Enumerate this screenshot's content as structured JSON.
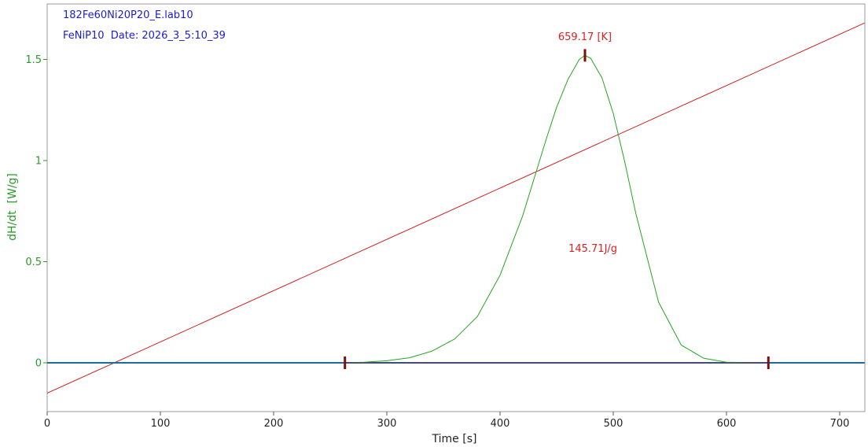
{
  "window": {
    "file_line": "182Fe60Ni20P20_E.lab10",
    "sample_line": "FeNiP10  Date: 2026_3_5:10_39"
  },
  "colors": {
    "dsc_curve": "#22a622",
    "temperature_line": "#cc1f1f",
    "baseline": "#1a6f9a",
    "marker": "#7a0f0f",
    "info_text": "#1c1cd6",
    "y_axis_text": "#2a9a2a",
    "annotation_text": "#dd2020"
  },
  "chart_data": {
    "type": "line",
    "title": "",
    "xlabel": "Time [s]",
    "ylabel": "dH/dt  [W/g]",
    "xlim": [
      0,
      722
    ],
    "ylim": [
      -0.24,
      1.7
    ],
    "xticks": [
      0,
      100,
      200,
      300,
      400,
      500,
      600,
      700
    ],
    "yticks": [
      0,
      0.5,
      1,
      1.5
    ],
    "xtick_labels": [
      "0",
      "100",
      "200",
      "300",
      "400",
      "500",
      "600",
      "700"
    ],
    "ytick_labels": [
      "0",
      "0.5",
      "1",
      "1.5"
    ],
    "grid": false,
    "series": [
      {
        "key": "dsc",
        "x": [
          263,
          280,
          300,
          320,
          340,
          360,
          380,
          400,
          420,
          440,
          450,
          460,
          470,
          475,
          480,
          490,
          500,
          510,
          520,
          540,
          560,
          580,
          600,
          620,
          637
        ],
        "y": [
          0,
          0.003,
          0.01,
          0.025,
          0.058,
          0.118,
          0.229,
          0.433,
          0.727,
          1.092,
          1.264,
          1.401,
          1.5,
          1.52,
          1.506,
          1.409,
          1.233,
          0.997,
          0.737,
          0.3,
          0.088,
          0.022,
          0.003,
          0.001,
          0
        ]
      },
      {
        "key": "temperature",
        "x": [
          0,
          722
        ],
        "y": [
          -0.15,
          1.68
        ]
      },
      {
        "key": "baseline",
        "x": [
          0,
          722
        ],
        "y": [
          0,
          0
        ]
      }
    ],
    "markers": [
      {
        "x": 263,
        "y": 0
      },
      {
        "x": 475,
        "y": 1.52
      },
      {
        "x": 637,
        "y": 0
      }
    ],
    "annotations": [
      {
        "key": "peak-temperature",
        "text": "659.17 [K]",
        "x": 475,
        "y": 1.61
      },
      {
        "key": "enthalpy",
        "text": "145.71J/g",
        "x": 482,
        "y": 0.565
      }
    ]
  }
}
